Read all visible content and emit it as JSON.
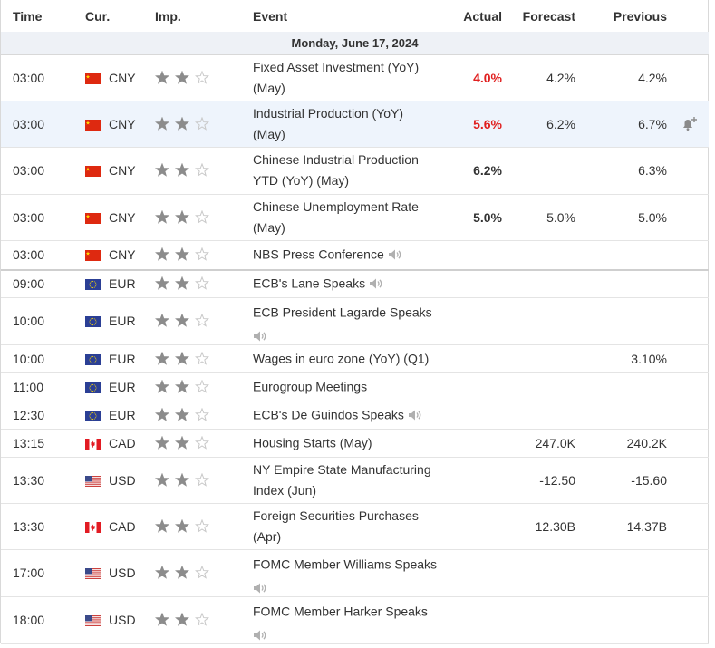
{
  "header": {
    "time": "Time",
    "currency": "Cur.",
    "importance": "Imp.",
    "event": "Event",
    "actual": "Actual",
    "forecast": "Forecast",
    "previous": "Previous"
  },
  "day_label": "Monday, June 17, 2024",
  "colors": {
    "actual_red": "#e02020",
    "star_filled": "#8c8c8c",
    "star_empty": "#c8c8c8",
    "highlight_row": "#eef4fc",
    "day_row": "#eef1f6"
  },
  "rows": [
    {
      "time": "03:00",
      "flag": "china-flag-icon",
      "currency": "CNY",
      "importance": 2,
      "event_line1": "Fixed Asset Investment (YoY)",
      "event_line2": "(May)",
      "actual": "4.0%",
      "actual_color": "red",
      "forecast": "4.2%",
      "previous": "4.2%"
    },
    {
      "time": "03:00",
      "flag": "china-flag-icon",
      "currency": "CNY",
      "importance": 2,
      "event_line1": "Industrial Production (YoY)",
      "event_line2": "(May)",
      "actual": "5.6%",
      "actual_color": "red",
      "forecast": "6.2%",
      "previous": "6.7%",
      "alert_icon": "bell-plus-icon"
    },
    {
      "time": "03:00",
      "flag": "china-flag-icon",
      "currency": "CNY",
      "importance": 2,
      "event_line1": "Chinese Industrial Production",
      "event_line2": "YTD (YoY) (May)",
      "actual": "6.2%",
      "actual_color": "black",
      "forecast": "",
      "previous": "6.3%"
    },
    {
      "time": "03:00",
      "flag": "china-flag-icon",
      "currency": "CNY",
      "importance": 2,
      "event_line1": "Chinese Unemployment Rate",
      "event_line2": "(May)",
      "actual": "5.0%",
      "actual_color": "black",
      "forecast": "5.0%",
      "previous": "5.0%"
    },
    {
      "time": "03:00",
      "flag": "china-flag-icon",
      "currency": "CNY",
      "importance": 2,
      "event_line1": "NBS Press Conference",
      "speech": true
    },
    {
      "time": "09:00",
      "flag": "eu-flag-icon",
      "currency": "EUR",
      "importance": 2,
      "event_line1": "ECB's Lane Speaks",
      "speech": true
    },
    {
      "time": "10:00",
      "flag": "eu-flag-icon",
      "currency": "EUR",
      "importance": 2,
      "event_line1": "ECB President Lagarde Speaks",
      "speech_block": true
    },
    {
      "time": "10:00",
      "flag": "eu-flag-icon",
      "currency": "EUR",
      "importance": 2,
      "event_line1": "Wages in euro zone (YoY) (Q1)",
      "actual": "",
      "forecast": "",
      "previous": "3.10%"
    },
    {
      "time": "11:00",
      "flag": "eu-flag-icon",
      "currency": "EUR",
      "importance": 2,
      "event_line1": "Eurogroup Meetings"
    },
    {
      "time": "12:30",
      "flag": "eu-flag-icon",
      "currency": "EUR",
      "importance": 2,
      "event_line1": "ECB's De Guindos Speaks",
      "speech": true
    },
    {
      "time": "13:15",
      "flag": "canada-flag-icon",
      "currency": "CAD",
      "importance": 2,
      "event_line1": "Housing Starts (May)",
      "forecast": "247.0K",
      "previous": "240.2K"
    },
    {
      "time": "13:30",
      "flag": "usa-flag-icon",
      "currency": "USD",
      "importance": 2,
      "event_line1": "NY Empire State Manufacturing",
      "event_line2": "Index (Jun)",
      "forecast": "-12.50",
      "previous": "-15.60"
    },
    {
      "time": "13:30",
      "flag": "canada-flag-icon",
      "currency": "CAD",
      "importance": 2,
      "event_line1": "Foreign Securities Purchases",
      "event_line2": "(Apr)",
      "forecast": "12.30B",
      "previous": "14.37B"
    },
    {
      "time": "17:00",
      "flag": "usa-flag-icon",
      "currency": "USD",
      "importance": 2,
      "event_line1": "FOMC Member Williams Speaks",
      "speech_block": true
    },
    {
      "time": "18:00",
      "flag": "usa-flag-icon",
      "currency": "USD",
      "importance": 2,
      "event_line1": "FOMC Member Harker Speaks",
      "speech_block": true
    }
  ]
}
